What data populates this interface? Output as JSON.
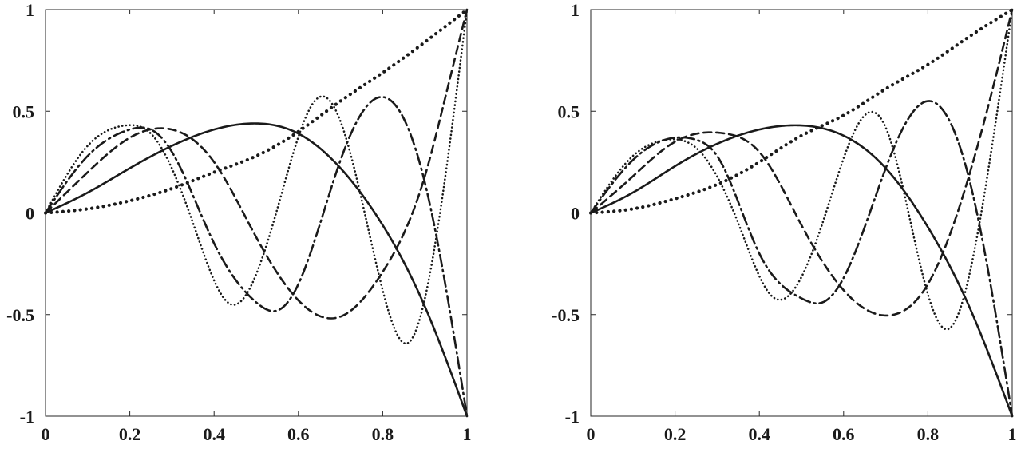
{
  "chart_data": [
    {
      "type": "line",
      "panel": "left",
      "xlim": [
        0,
        1
      ],
      "ylim": [
        -1,
        1
      ],
      "grid": false,
      "xticks": [
        0,
        0.2,
        0.4,
        0.6,
        0.8,
        1
      ],
      "xtick_labels": [
        "0",
        "0.2",
        "0.4",
        "0.6",
        "0.8",
        "1"
      ],
      "yticks": [
        1,
        0.5,
        0,
        -0.5,
        -1
      ],
      "ytick_labels": [
        "1",
        "0.5",
        "0",
        "-0.5",
        "-1"
      ],
      "series": [
        {
          "style": "heavy-dotted",
          "x": [
            0,
            0.1,
            0.2,
            0.3,
            0.4,
            0.5,
            0.6,
            0.7,
            0.8,
            0.9,
            1
          ],
          "y": [
            0,
            0.02,
            0.06,
            0.12,
            0.2,
            0.28,
            0.4,
            0.55,
            0.69,
            0.84,
            1
          ]
        },
        {
          "style": "solid",
          "x": [
            0,
            0.1,
            0.2,
            0.3,
            0.4,
            0.5,
            0.6,
            0.7,
            0.8,
            0.9,
            1
          ],
          "y": [
            0,
            0.1,
            0.22,
            0.33,
            0.41,
            0.44,
            0.39,
            0.22,
            -0.06,
            -0.46,
            -1
          ]
        },
        {
          "style": "dashed",
          "x": [
            0,
            0.1,
            0.2,
            0.3,
            0.4,
            0.5,
            0.6,
            0.7,
            0.8,
            0.9,
            0.95,
            1
          ],
          "y": [
            0,
            0.2,
            0.37,
            0.41,
            0.25,
            -0.12,
            -0.43,
            -0.51,
            -0.29,
            0.18,
            0.58,
            1
          ]
        },
        {
          "style": "dash-dot",
          "x": [
            0,
            0.1,
            0.2,
            0.25,
            0.3,
            0.4,
            0.5,
            0.55,
            0.6,
            0.7,
            0.8,
            0.9,
            1
          ],
          "y": [
            0,
            0.28,
            0.41,
            0.41,
            0.3,
            -0.15,
            -0.44,
            -0.48,
            -0.35,
            0.26,
            0.57,
            0.15,
            -1
          ]
        },
        {
          "style": "dotted",
          "x": [
            0,
            0.1,
            0.19,
            0.25,
            0.35,
            0.44,
            0.55,
            0.65,
            0.7,
            0.8,
            0.86,
            0.95,
            1
          ],
          "y": [
            0,
            0.33,
            0.43,
            0.39,
            -0.05,
            -0.45,
            0.02,
            0.57,
            0.45,
            -0.38,
            -0.64,
            0.2,
            1
          ]
        }
      ]
    },
    {
      "type": "line",
      "panel": "right",
      "xlim": [
        0,
        1
      ],
      "ylim": [
        -1,
        1
      ],
      "grid": false,
      "xticks": [
        0,
        0.2,
        0.4,
        0.6,
        0.8,
        1
      ],
      "xtick_labels": [
        "0",
        "0.2",
        "0.4",
        "0.6",
        "0.8",
        "1"
      ],
      "yticks": [
        1,
        0.5,
        0,
        -0.5,
        -1
      ],
      "ytick_labels": [
        "1",
        "0.5",
        "0",
        "-0.5",
        "-1"
      ],
      "series": [
        {
          "style": "heavy-dotted",
          "x": [
            0,
            0.1,
            0.2,
            0.3,
            0.4,
            0.5,
            0.6,
            0.7,
            0.8,
            0.9,
            1
          ],
          "y": [
            0,
            0.02,
            0.07,
            0.14,
            0.25,
            0.38,
            0.48,
            0.61,
            0.73,
            0.87,
            1
          ]
        },
        {
          "style": "solid",
          "x": [
            0,
            0.1,
            0.2,
            0.3,
            0.4,
            0.5,
            0.6,
            0.7,
            0.8,
            0.9,
            1
          ],
          "y": [
            0,
            0.1,
            0.23,
            0.34,
            0.41,
            0.43,
            0.38,
            0.22,
            -0.07,
            -0.47,
            -1
          ]
        },
        {
          "style": "dashed",
          "x": [
            0,
            0.1,
            0.2,
            0.32,
            0.4,
            0.5,
            0.6,
            0.72,
            0.8,
            0.9,
            0.95,
            1
          ],
          "y": [
            0,
            0.18,
            0.35,
            0.39,
            0.3,
            -0.06,
            -0.38,
            -0.5,
            -0.35,
            0.2,
            0.58,
            1
          ]
        },
        {
          "style": "dash-dot",
          "x": [
            0,
            0.1,
            0.2,
            0.25,
            0.3,
            0.4,
            0.5,
            0.55,
            0.6,
            0.7,
            0.8,
            0.9,
            1
          ],
          "y": [
            0,
            0.26,
            0.37,
            0.36,
            0.28,
            -0.2,
            -0.42,
            -0.44,
            -0.32,
            0.22,
            0.55,
            0.15,
            -1
          ]
        },
        {
          "style": "dotted",
          "x": [
            0,
            0.1,
            0.18,
            0.25,
            0.35,
            0.43,
            0.55,
            0.65,
            0.7,
            0.8,
            0.85,
            0.95,
            1
          ],
          "y": [
            0,
            0.28,
            0.36,
            0.32,
            -0.05,
            -0.41,
            -0.05,
            0.48,
            0.42,
            -0.4,
            -0.57,
            0.3,
            1
          ]
        }
      ]
    }
  ]
}
